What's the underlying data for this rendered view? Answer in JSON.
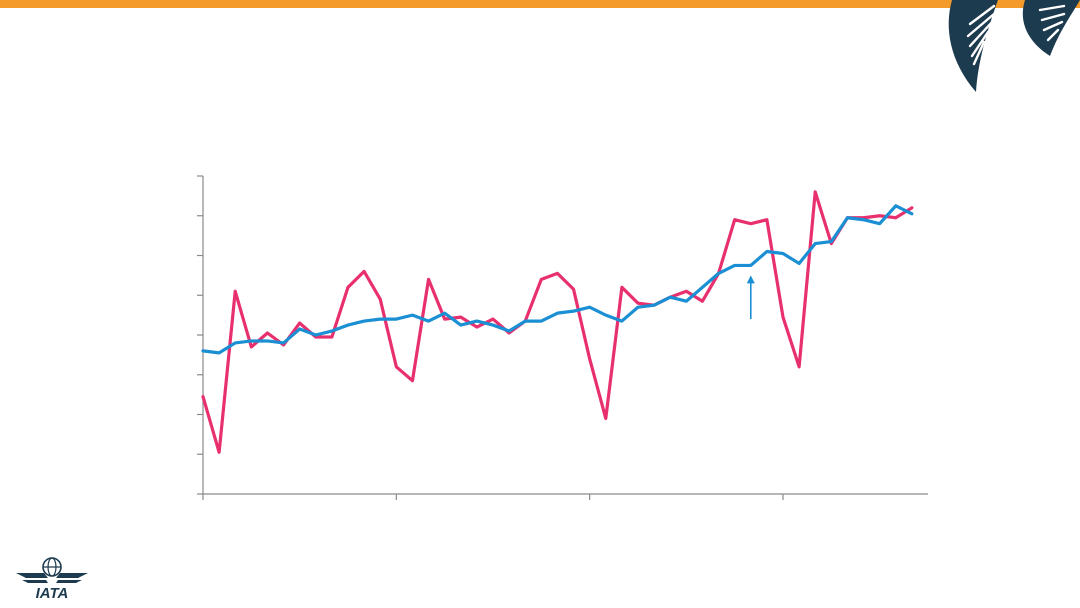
{
  "theme": {
    "accent": "#f39a2b",
    "navy": "#1d3b4f",
    "series_a_color": "#e8306f",
    "series_b_color": "#1b8fd4"
  },
  "logo": {
    "text": "IATA"
  },
  "chart_data": {
    "type": "line",
    "title": "",
    "xlabel": "",
    "ylabel": "",
    "grid": false,
    "legend": "none",
    "x": [
      0,
      1,
      2,
      3,
      4,
      5,
      6,
      7,
      8,
      9,
      10,
      11,
      12,
      13,
      14,
      15,
      16,
      17,
      18,
      19,
      20,
      21,
      22,
      23,
      24,
      25,
      26,
      27,
      28,
      29,
      30,
      31,
      32,
      33,
      34,
      35,
      36,
      37,
      38,
      39,
      40,
      41,
      42,
      43,
      44
    ],
    "xlim": [
      0,
      45
    ],
    "ylim": [
      0,
      8
    ],
    "x_major_ticks": [
      0,
      12,
      24,
      36
    ],
    "series": [
      {
        "color": "#e8306f",
        "values": [
          2.45,
          1.05,
          5.1,
          3.7,
          4.05,
          3.75,
          4.3,
          3.95,
          3.95,
          5.2,
          5.6,
          4.9,
          3.2,
          2.85,
          5.4,
          4.4,
          4.45,
          4.2,
          4.4,
          4.05,
          4.35,
          5.4,
          5.55,
          5.15,
          3.4,
          1.9,
          5.2,
          4.8,
          4.75,
          4.95,
          5.1,
          4.85,
          5.55,
          6.9,
          6.8,
          6.9,
          4.45,
          3.2,
          7.6,
          6.3,
          6.95,
          6.95,
          7.0,
          6.95,
          7.2
        ]
      },
      {
        "color": "#1b8fd4",
        "values": [
          3.6,
          3.55,
          3.8,
          3.85,
          3.85,
          3.8,
          4.15,
          4.0,
          4.1,
          4.25,
          4.35,
          4.4,
          4.4,
          4.5,
          4.35,
          4.55,
          4.25,
          4.35,
          4.25,
          4.1,
          4.35,
          4.35,
          4.55,
          4.6,
          4.7,
          4.5,
          4.35,
          4.7,
          4.75,
          4.95,
          4.85,
          5.2,
          5.55,
          5.75,
          5.75,
          6.1,
          6.05,
          5.8,
          6.3,
          6.35,
          6.95,
          6.9,
          6.8,
          7.25,
          7.05
        ]
      }
    ],
    "annotations": [
      {
        "type": "arrow",
        "x": 34,
        "y_from": 4.4,
        "y_to": 5.5,
        "color": "#1b8fd4"
      }
    ]
  }
}
